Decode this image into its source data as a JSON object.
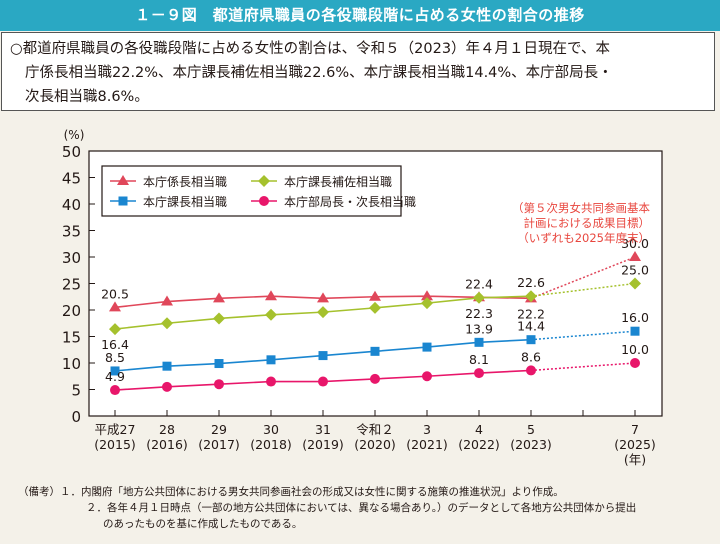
{
  "figure": {
    "title": "１－９図　都道府県職員の各役職段階に占める女性の割合の推移",
    "summary_lines": [
      "○都道府県職員の各役職段階に占める女性の割合は、令和５（2023）年４月１日現在で、本",
      "庁係長相当職22.2%、本庁課長補佐相当職22.6%、本庁課長相当職14.4%、本庁部局長・",
      "次長相当職8.6%。"
    ],
    "notes": [
      "（備考）１．内閣府「地方公共団体における男女共同参画社会の形成又は女性に関する施策の推進状況」より作成。",
      "２．各年４月１日時点（一部の地方公共団体においては、異なる場合あり。）のデータとして各地方公共団体から提出",
      "のあったものを基に作成したものである。"
    ]
  },
  "chart_data": {
    "type": "line",
    "title": "都道府県職員の各役職段階に占める女性の割合の推移",
    "ylabel": "(%)",
    "xlabel": "(年)",
    "ylim": [
      0,
      50
    ],
    "yticks": [
      0,
      5,
      10,
      15,
      20,
      25,
      30,
      35,
      40,
      45,
      50
    ],
    "grid": false,
    "legend_position": "top-left",
    "x": [
      2015,
      2016,
      2017,
      2018,
      2019,
      2020,
      2021,
      2022,
      2023,
      2024,
      2025
    ],
    "x_tick_labels": [
      {
        "era": "平成27",
        "year": "(2015)"
      },
      {
        "era": "28",
        "year": "(2016)"
      },
      {
        "era": "29",
        "year": "(2017)"
      },
      {
        "era": "30",
        "year": "(2018)"
      },
      {
        "era": "31",
        "year": "(2019)"
      },
      {
        "era": "令和２",
        "year": "(2020)"
      },
      {
        "era": "3",
        "year": "(2021)"
      },
      {
        "era": "4",
        "year": "(2022)"
      },
      {
        "era": "5",
        "year": "(2023)"
      },
      {
        "era": "",
        "year": ""
      },
      {
        "era": "7",
        "year": "(2025)"
      }
    ],
    "series": [
      {
        "name": "本庁係長相当職",
        "color": "#e0475a",
        "marker": "triangle",
        "x": [
          2015,
          2016,
          2017,
          2018,
          2019,
          2020,
          2021,
          2022,
          2023
        ],
        "values": [
          20.5,
          21.6,
          22.2,
          22.6,
          22.2,
          22.5,
          22.6,
          22.4,
          22.2
        ],
        "labels": {
          "2015": "20.5",
          "2022": "22.4",
          "2023": "22.2"
        },
        "target": {
          "x": 2025,
          "value": 30.0,
          "label": "30.0"
        }
      },
      {
        "name": "本庁課長補佐相当職",
        "color": "#a5c12d",
        "marker": "diamond",
        "x": [
          2015,
          2016,
          2017,
          2018,
          2019,
          2020,
          2021,
          2022,
          2023
        ],
        "values": [
          16.4,
          17.5,
          18.4,
          19.1,
          19.6,
          20.4,
          21.3,
          22.3,
          22.6
        ],
        "labels": {
          "2015": "16.4",
          "2022": "22.3",
          "2023": "22.6"
        },
        "target": {
          "x": 2025,
          "value": 25.0,
          "label": "25.0"
        }
      },
      {
        "name": "本庁課長相当職",
        "color": "#1a86d0",
        "marker": "square",
        "x": [
          2015,
          2016,
          2017,
          2018,
          2019,
          2020,
          2021,
          2022,
          2023
        ],
        "values": [
          8.5,
          9.4,
          9.9,
          10.6,
          11.4,
          12.2,
          13.0,
          13.9,
          14.4
        ],
        "labels": {
          "2015": "8.5",
          "2022": "13.9",
          "2023": "14.4"
        },
        "target": {
          "x": 2025,
          "value": 16.0,
          "label": "16.0"
        }
      },
      {
        "name": "本庁部局長・次長相当職",
        "color": "#e8166a",
        "marker": "circle",
        "x": [
          2015,
          2016,
          2017,
          2018,
          2019,
          2020,
          2021,
          2022,
          2023
        ],
        "values": [
          4.9,
          5.5,
          6.0,
          6.5,
          6.5,
          7.0,
          7.5,
          8.1,
          8.6
        ],
        "labels": {
          "2015": "4.9",
          "2022": "8.1",
          "2023": "8.6"
        },
        "target": {
          "x": 2025,
          "value": 10.0,
          "label": "10.0"
        }
      }
    ],
    "annotations": [
      "（第５次男女共同参画基本",
      "計画における成果目標）",
      "（いずれも2025年度末）"
    ],
    "annotation_color": "#e8473f"
  }
}
